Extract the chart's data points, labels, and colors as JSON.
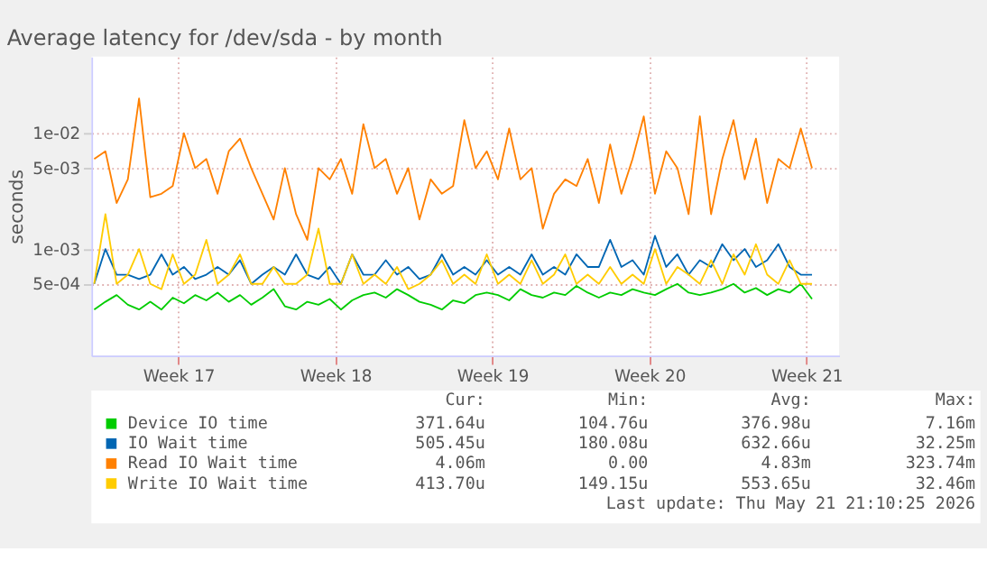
{
  "chart_data": {
    "type": "line",
    "title": "Average latency for /dev/sda - by month",
    "ylabel": "seconds",
    "log": true,
    "grid": true,
    "legend": "bottom",
    "marker": "none",
    "line_style": "solid",
    "ylim": [
      0.00012,
      0.046
    ],
    "yticks": [
      {
        "value": 0.0005,
        "label": "5e-04"
      },
      {
        "value": 0.001,
        "label": "1e-03"
      },
      {
        "value": 0.005,
        "label": "5e-03"
      },
      {
        "value": 0.01,
        "label": "1e-02"
      }
    ],
    "xlim": [
      "2026-04-19T15:00",
      "2026-05-22T23:00"
    ],
    "xticks": [
      {
        "value": "2026-04-23T12:00",
        "label": "Week 17"
      },
      {
        "value": "2026-04-30T12:00",
        "label": "Week 18"
      },
      {
        "value": "2026-05-07T12:00",
        "label": "Week 19"
      },
      {
        "value": "2026-05-14T12:00",
        "label": "Week 20"
      },
      {
        "value": "2026-05-21T12:00",
        "label": "Week 21"
      }
    ],
    "x": [
      "2026-04-19T18:00",
      "2026-04-20T06:00",
      "2026-04-20T18:00",
      "2026-04-21T06:00",
      "2026-04-21T18:00",
      "2026-04-22T06:00",
      "2026-04-22T18:00",
      "2026-04-23T06:00",
      "2026-04-23T18:00",
      "2026-04-24T06:00",
      "2026-04-24T18:00",
      "2026-04-25T06:00",
      "2026-04-25T18:00",
      "2026-04-26T06:00",
      "2026-04-26T18:00",
      "2026-04-27T06:00",
      "2026-04-27T18:00",
      "2026-04-28T06:00",
      "2026-04-28T18:00",
      "2026-04-29T06:00",
      "2026-04-29T18:00",
      "2026-04-30T06:00",
      "2026-04-30T18:00",
      "2026-05-01T06:00",
      "2026-05-01T18:00",
      "2026-05-02T06:00",
      "2026-05-02T18:00",
      "2026-05-03T06:00",
      "2026-05-03T18:00",
      "2026-05-04T06:00",
      "2026-05-04T18:00",
      "2026-05-05T06:00",
      "2026-05-05T18:00",
      "2026-05-06T06:00",
      "2026-05-06T18:00",
      "2026-05-07T06:00",
      "2026-05-07T18:00",
      "2026-05-08T06:00",
      "2026-05-08T18:00",
      "2026-05-09T06:00",
      "2026-05-09T18:00",
      "2026-05-10T06:00",
      "2026-05-10T18:00",
      "2026-05-11T06:00",
      "2026-05-11T18:00",
      "2026-05-12T06:00",
      "2026-05-12T18:00",
      "2026-05-13T06:00",
      "2026-05-13T18:00",
      "2026-05-14T06:00",
      "2026-05-14T18:00",
      "2026-05-15T06:00",
      "2026-05-15T18:00",
      "2026-05-16T06:00",
      "2026-05-16T18:00",
      "2026-05-17T06:00",
      "2026-05-17T18:00",
      "2026-05-18T06:00",
      "2026-05-18T18:00",
      "2026-05-19T06:00",
      "2026-05-19T18:00",
      "2026-05-20T06:00",
      "2026-05-20T18:00",
      "2026-05-21T06:00",
      "2026-05-21T18:00"
    ],
    "series": [
      {
        "name": "Device IO time",
        "color": "#00cc00",
        "values": [
          0.0003,
          0.00035,
          0.0004,
          0.00033,
          0.0003,
          0.00035,
          0.0003,
          0.00038,
          0.00034,
          0.0004,
          0.00036,
          0.00042,
          0.00035,
          0.0004,
          0.00033,
          0.00038,
          0.00045,
          0.00032,
          0.0003,
          0.00035,
          0.00033,
          0.00037,
          0.0003,
          0.00036,
          0.0004,
          0.00042,
          0.00038,
          0.00045,
          0.0004,
          0.00035,
          0.00033,
          0.0003,
          0.00036,
          0.00034,
          0.0004,
          0.00042,
          0.0004,
          0.00036,
          0.00045,
          0.0004,
          0.00038,
          0.00042,
          0.0004,
          0.00048,
          0.00042,
          0.00038,
          0.00042,
          0.0004,
          0.00045,
          0.00042,
          0.0004,
          0.00045,
          0.0005,
          0.00042,
          0.0004,
          0.00042,
          0.00045,
          0.0005,
          0.00042,
          0.00046,
          0.0004,
          0.00045,
          0.00042,
          0.0005,
          0.00037
        ]
      },
      {
        "name": "IO Wait time",
        "color": "#0066b3",
        "values": [
          0.0005,
          0.001,
          0.0006,
          0.0006,
          0.00055,
          0.0006,
          0.0009,
          0.0006,
          0.0007,
          0.00055,
          0.0006,
          0.0007,
          0.0006,
          0.0008,
          0.0005,
          0.0006,
          0.0007,
          0.0006,
          0.0009,
          0.0006,
          0.00055,
          0.0007,
          0.0005,
          0.0009,
          0.0006,
          0.0006,
          0.0008,
          0.0006,
          0.0007,
          0.00055,
          0.0006,
          0.0009,
          0.0006,
          0.0007,
          0.0006,
          0.0008,
          0.0006,
          0.0007,
          0.0006,
          0.0009,
          0.0006,
          0.0007,
          0.0006,
          0.0009,
          0.0007,
          0.0007,
          0.0012,
          0.0007,
          0.0008,
          0.0006,
          0.0013,
          0.0007,
          0.0009,
          0.0006,
          0.0008,
          0.0007,
          0.0011,
          0.0008,
          0.001,
          0.0007,
          0.0008,
          0.0011,
          0.0007,
          0.0006,
          0.0006
        ]
      },
      {
        "name": "Read IO Wait time",
        "color": "#ff8000",
        "values": [
          0.006,
          0.007,
          0.0025,
          0.004,
          0.02,
          0.0028,
          0.003,
          0.0035,
          0.01,
          0.005,
          0.006,
          0.003,
          0.007,
          0.009,
          0.005,
          0.003,
          0.0018,
          0.005,
          0.002,
          0.0012,
          0.005,
          0.004,
          0.006,
          0.003,
          0.012,
          0.005,
          0.006,
          0.003,
          0.005,
          0.0018,
          0.004,
          0.003,
          0.0035,
          0.013,
          0.005,
          0.007,
          0.004,
          0.011,
          0.004,
          0.005,
          0.0015,
          0.003,
          0.004,
          0.0035,
          0.006,
          0.0025,
          0.008,
          0.003,
          0.006,
          0.014,
          0.003,
          0.007,
          0.005,
          0.002,
          0.014,
          0.002,
          0.006,
          0.013,
          0.004,
          0.009,
          0.0025,
          0.006,
          0.005,
          0.011,
          0.005
        ]
      },
      {
        "name": "Write IO Wait time",
        "color": "#ffcc00",
        "values": [
          0.0005,
          0.002,
          0.0005,
          0.0006,
          0.001,
          0.0005,
          0.00045,
          0.0009,
          0.0005,
          0.0006,
          0.0012,
          0.0005,
          0.0006,
          0.0009,
          0.0005,
          0.0005,
          0.0007,
          0.0005,
          0.0005,
          0.0006,
          0.0015,
          0.0005,
          0.0005,
          0.0009,
          0.0005,
          0.0006,
          0.0005,
          0.0007,
          0.00045,
          0.0005,
          0.0006,
          0.0008,
          0.0005,
          0.0006,
          0.0005,
          0.0009,
          0.0005,
          0.0006,
          0.0005,
          0.0008,
          0.0005,
          0.0006,
          0.0009,
          0.0005,
          0.0006,
          0.0005,
          0.0007,
          0.0005,
          0.0006,
          0.0005,
          0.001,
          0.0005,
          0.0007,
          0.0006,
          0.0005,
          0.0008,
          0.0005,
          0.0009,
          0.0006,
          0.0011,
          0.0006,
          0.0005,
          0.0008,
          0.0005,
          0.0005
        ]
      }
    ],
    "annotations": [
      "Cur:",
      "Min:",
      "Avg:",
      "Max:",
      "371.64u",
      "104.76u",
      "376.98u",
      "7.16m",
      "505.45u",
      "180.08u",
      "632.66u",
      "32.25m",
      "4.06m",
      "0.00",
      "4.83m",
      "323.74m",
      "413.70u",
      "149.15u",
      "553.65u",
      "32.46m",
      "Last update: Thu May 21 21:10:25 2026"
    ]
  }
}
